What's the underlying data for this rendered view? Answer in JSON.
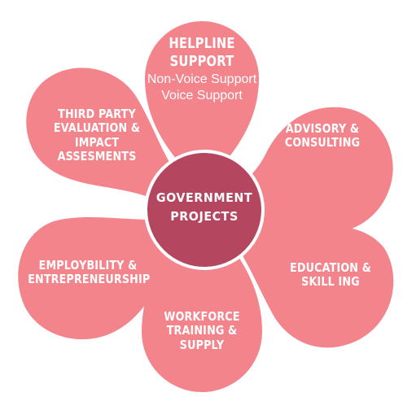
{
  "hub": {
    "line1": "GOVERNMENT",
    "line2": "PROJECTS"
  },
  "petals": {
    "helpline": {
      "title_line1": "HELPLINE",
      "title_line2": "SUPPORT",
      "sub_line1": "Non-Voice Support",
      "sub_line2": "Voice Support"
    },
    "advisory": {
      "line1": "ADVISORY &",
      "line2": "CONSULTING"
    },
    "education": {
      "line1": "EDUCATION &",
      "line2": "SKILL ING"
    },
    "workforce": {
      "line1": "WORKFORCE",
      "line2": "TRAINING &",
      "line3": "SUPPLY"
    },
    "employability": {
      "line1": "EMPLOYBILITY &",
      "line2": "ENTREPRENEURSHIP"
    },
    "third_party": {
      "line1": "THIRD PARTY",
      "line2": "EVALUATION &",
      "line3": "IMPACT",
      "line4": "ASSESMENTS"
    }
  },
  "colors": {
    "petal": "#f3848c",
    "hub": "#b44660",
    "text": "#ffffff"
  }
}
